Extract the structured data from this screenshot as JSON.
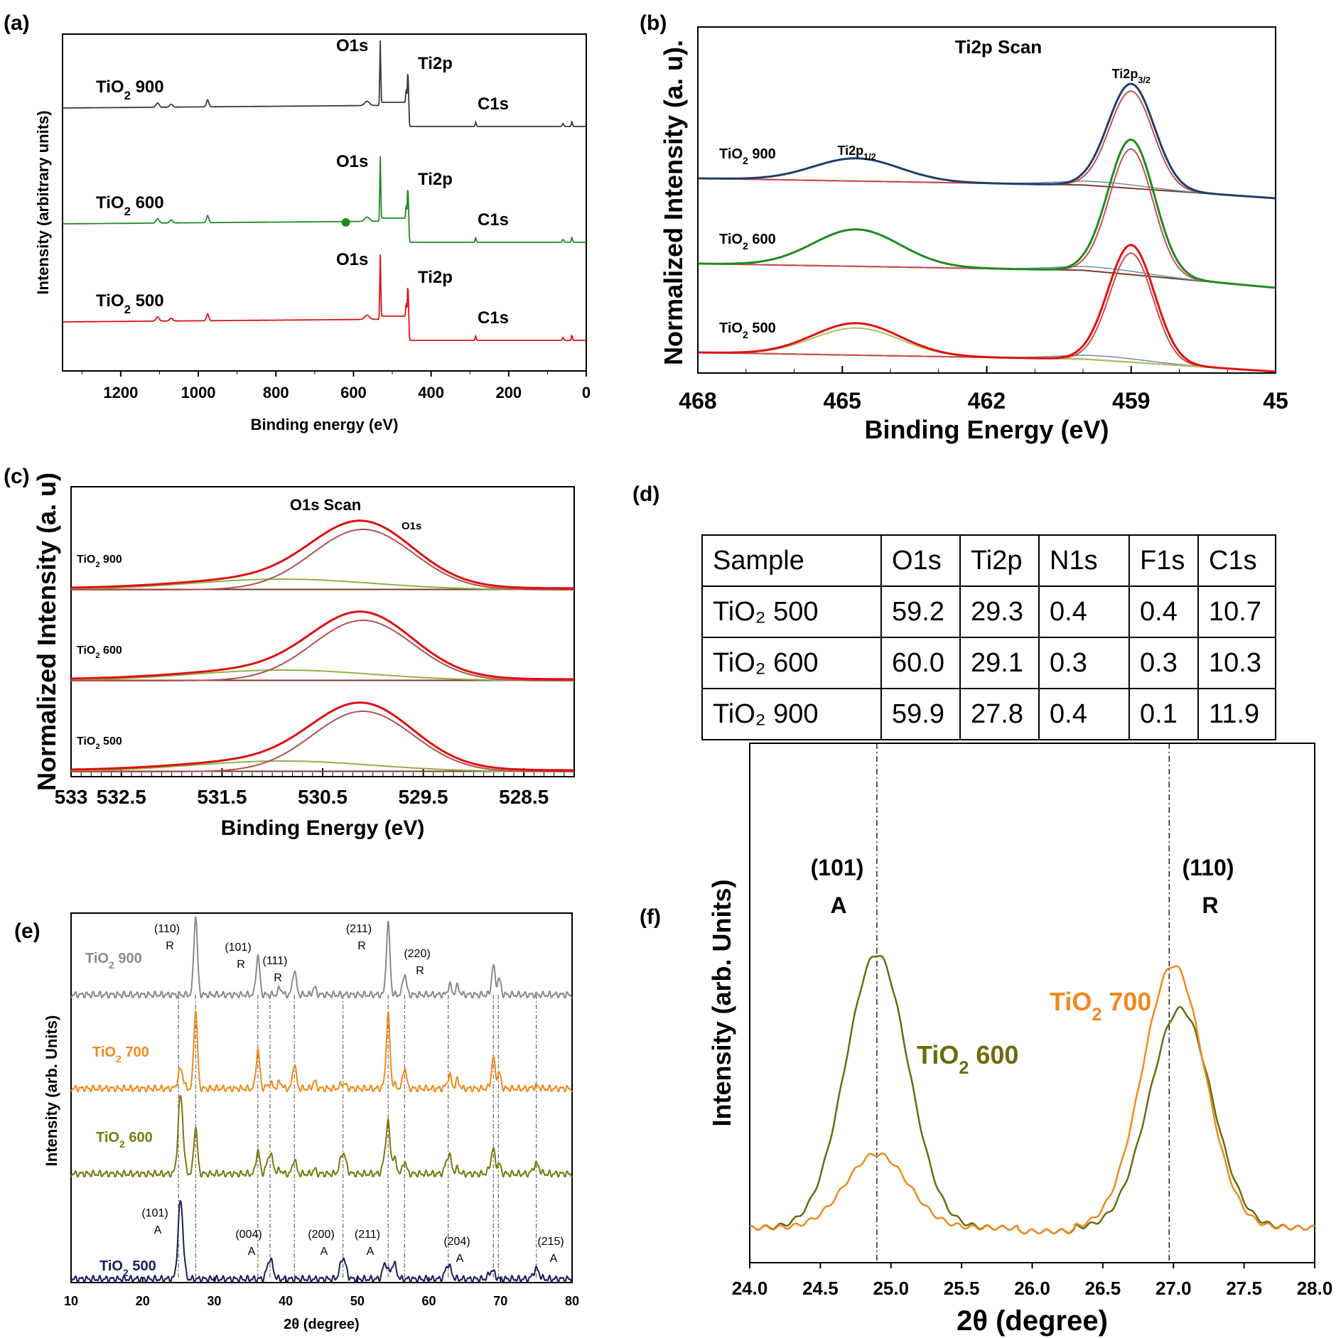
{
  "panels": {
    "a": "(a)",
    "b": "(b)",
    "c": "(c)",
    "d": "(d)",
    "e": "(e)",
    "f": "(f)"
  },
  "chart_data": [
    {
      "panel": "a",
      "type": "line",
      "title": "",
      "xlabel": "Binding energy (eV)",
      "ylabel": "Intensity (arbitrary units)",
      "xlim": [
        1350,
        0
      ],
      "xticks": [
        1200,
        1000,
        800,
        600,
        400,
        200,
        0
      ],
      "series": [
        {
          "name": "TiO₂ 900",
          "color": "#3a3a3a"
        },
        {
          "name": "TiO₂ 600",
          "color": "#1e8a1e"
        },
        {
          "name": "TiO₂ 500",
          "color": "#e01010"
        }
      ],
      "peaks": {
        "O1s": 531,
        "Ti2p": 459,
        "C1s": 285
      },
      "annotations": [
        "O1s",
        "Ti2p",
        "C1s"
      ]
    },
    {
      "panel": "b",
      "type": "line",
      "title": "Ti2p Scan",
      "xlabel": "Binding Energy (eV)",
      "ylabel": "Normalized Intensity (a. u).",
      "xlim": [
        468,
        456
      ],
      "xticks": [
        "468",
        "465",
        "462",
        "459",
        "45"
      ],
      "series": [
        {
          "name": "TiO₂ 900",
          "color": "#1f3d6b"
        },
        {
          "name": "TiO₂ 600",
          "color": "#1e8a1e"
        },
        {
          "name": "TiO₂ 500",
          "color": "#e01010"
        }
      ],
      "peaks": {
        "Ti2p1/2": 464.7,
        "Ti2p3/2": 459.0
      },
      "annotations": [
        "Ti2p1/2",
        "Ti2p3/2"
      ]
    },
    {
      "panel": "c",
      "type": "line",
      "title": "O1s Scan",
      "xlabel": "Binding Energy (eV)",
      "ylabel": "Normalized Intensity (a. u)",
      "xlim": [
        533,
        528
      ],
      "xticks": [
        "533",
        "532.5",
        "531.5",
        "530.5",
        "529.5",
        "528.5"
      ],
      "series": [
        {
          "name": "TiO₂ 900",
          "color": "#e01010"
        },
        {
          "name": "TiO₂ 600",
          "color": "#e01010"
        },
        {
          "name": "TiO₂ 500",
          "color": "#e01010"
        }
      ],
      "peaks": {
        "O1s": 530.1
      },
      "annotations": [
        "O1s"
      ]
    },
    {
      "panel": "d",
      "type": "table",
      "columns": [
        "Sample",
        "O1s",
        "Ti2p",
        "N1s",
        "F1s",
        "C1s"
      ],
      "rows": [
        {
          "sample": "TiO₂ 500",
          "values": [
            "59.2",
            "29.3",
            "0.4",
            "0.4",
            "10.7"
          ]
        },
        {
          "sample": "TiO₂ 600",
          "values": [
            "60.0",
            "29.1",
            "0.3",
            "0.3",
            "10.3"
          ]
        },
        {
          "sample": "TiO₂ 900",
          "values": [
            "59.9",
            "27.8",
            "0.4",
            "0.1",
            "11.9"
          ]
        }
      ]
    },
    {
      "panel": "e",
      "type": "line",
      "title": "",
      "xlabel": "2θ (degree)",
      "ylabel": "Intensity (arb. Units)",
      "xlim": [
        10,
        80
      ],
      "xticks": [
        10,
        20,
        30,
        40,
        50,
        60,
        70,
        80
      ],
      "series": [
        {
          "name": "TiO₂ 900",
          "color": "#8a8a8a"
        },
        {
          "name": "TiO₂ 700",
          "color": "#f08a1c"
        },
        {
          "name": "TiO₂ 600",
          "color": "#7a7a10"
        },
        {
          "name": "TiO₂ 500",
          "color": "#1a1f5c"
        }
      ],
      "anatase_peaks": [
        25.3,
        37.8,
        48.0,
        53.9,
        62.7,
        75.0
      ],
      "rutile_peaks": [
        27.4,
        36.1,
        41.2,
        54.3,
        56.6
      ],
      "annotations": [
        {
          "hkl": "(110)",
          "phase": "R"
        },
        {
          "hkl": "(101)",
          "phase": "R"
        },
        {
          "hkl": "(111)",
          "phase": "R"
        },
        {
          "hkl": "(211)",
          "phase": "R"
        },
        {
          "hkl": "(220)",
          "phase": "R"
        },
        {
          "hkl": "(101)",
          "phase": "A"
        },
        {
          "hkl": "(004)",
          "phase": "A"
        },
        {
          "hkl": "(200)",
          "phase": "A"
        },
        {
          "hkl": "(211)",
          "phase": "A"
        },
        {
          "hkl": "(204)",
          "phase": "A"
        },
        {
          "hkl": "(215)",
          "phase": "A"
        }
      ]
    },
    {
      "panel": "f",
      "type": "line",
      "title": "",
      "xlabel": "2θ (degree)",
      "ylabel": "Intensity (arb. Units)",
      "xlim": [
        24.0,
        28.0
      ],
      "xticks": [
        "24.0",
        "24.5",
        "25.0",
        "25.5",
        "26.0",
        "26.5",
        "27.0",
        "27.5",
        "28.0"
      ],
      "series": [
        {
          "name": "TiO₂ 600",
          "color": "#6b6b0e",
          "peaks": [
            {
              "x": 24.9,
              "rel": 1.0
            },
            {
              "x": 27.0,
              "rel": 0.8
            }
          ]
        },
        {
          "name": "TiO₂ 700",
          "color": "#f08a1c",
          "peaks": [
            {
              "x": 24.9,
              "rel": 0.27
            },
            {
              "x": 27.0,
              "rel": 0.96
            }
          ]
        }
      ],
      "reference_lines": [
        24.9,
        26.97
      ],
      "annotations": [
        {
          "hkl": "(101)",
          "phase": "A"
        },
        {
          "hkl": "(110)",
          "phase": "R"
        }
      ]
    }
  ]
}
